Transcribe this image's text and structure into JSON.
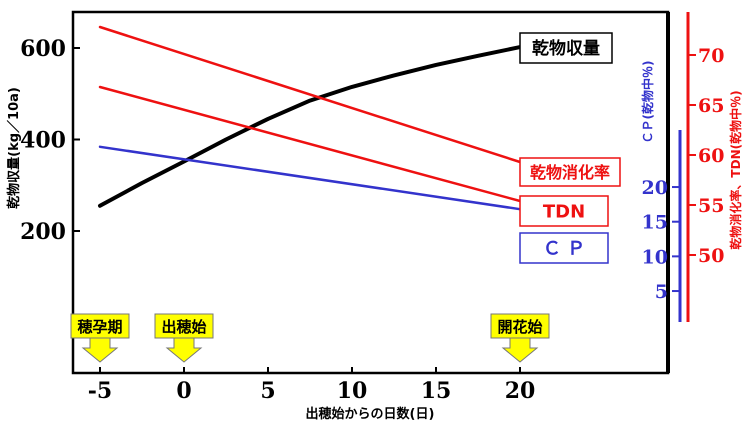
{
  "chart_data": {
    "type": "line",
    "xlabel": "出穂始からの日数(日)",
    "x_ticks": [
      -5,
      0,
      5,
      10,
      15,
      20
    ],
    "xlim": [
      -7.5,
      27.5
    ],
    "left_axis": {
      "label": "乾物収量(kg／10a)",
      "ticks": [
        200,
        400,
        600
      ],
      "ylim": [
        0,
        660
      ],
      "color": "#000000"
    },
    "cp_axis": {
      "label": "ＣＰ(乾物中％)",
      "ticks": [
        5,
        10,
        15,
        20
      ],
      "color": "#3333cc"
    },
    "red_axis": {
      "label": "乾物消化率、TDN(乾物中％)",
      "ticks": [
        50,
        55,
        60,
        65,
        70
      ],
      "color": "#ee1111"
    },
    "series": [
      {
        "name": "乾物収量",
        "axis": "left",
        "color": "#000000",
        "x": [
          -5,
          -2.5,
          0,
          2.5,
          5,
          7.5,
          10,
          12.5,
          15,
          17.5,
          20
        ],
        "values": [
          255,
          305,
          352,
          400,
          445,
          485,
          515,
          540,
          563,
          583,
          602
        ]
      },
      {
        "name": "乾物消化率",
        "axis": "red",
        "color": "#ee1111",
        "x": [
          -5,
          20
        ],
        "values": [
          72.8,
          59.3
        ]
      },
      {
        "name": "TDN",
        "axis": "red",
        "color": "#ee1111",
        "x": [
          -5,
          20
        ],
        "values": [
          66.8,
          55.4
        ]
      },
      {
        "name": "Ｃ Ｐ",
        "axis": "cp",
        "color": "#3333cc",
        "x": [
          -5,
          20
        ],
        "values": [
          25.8,
          16.8
        ]
      }
    ],
    "stage_markers": [
      {
        "label": "穂孕期",
        "x": -5
      },
      {
        "label": "出穂始",
        "x": 0
      },
      {
        "label": "開花始",
        "x": 20
      }
    ],
    "marker_color": "#ffff00"
  }
}
